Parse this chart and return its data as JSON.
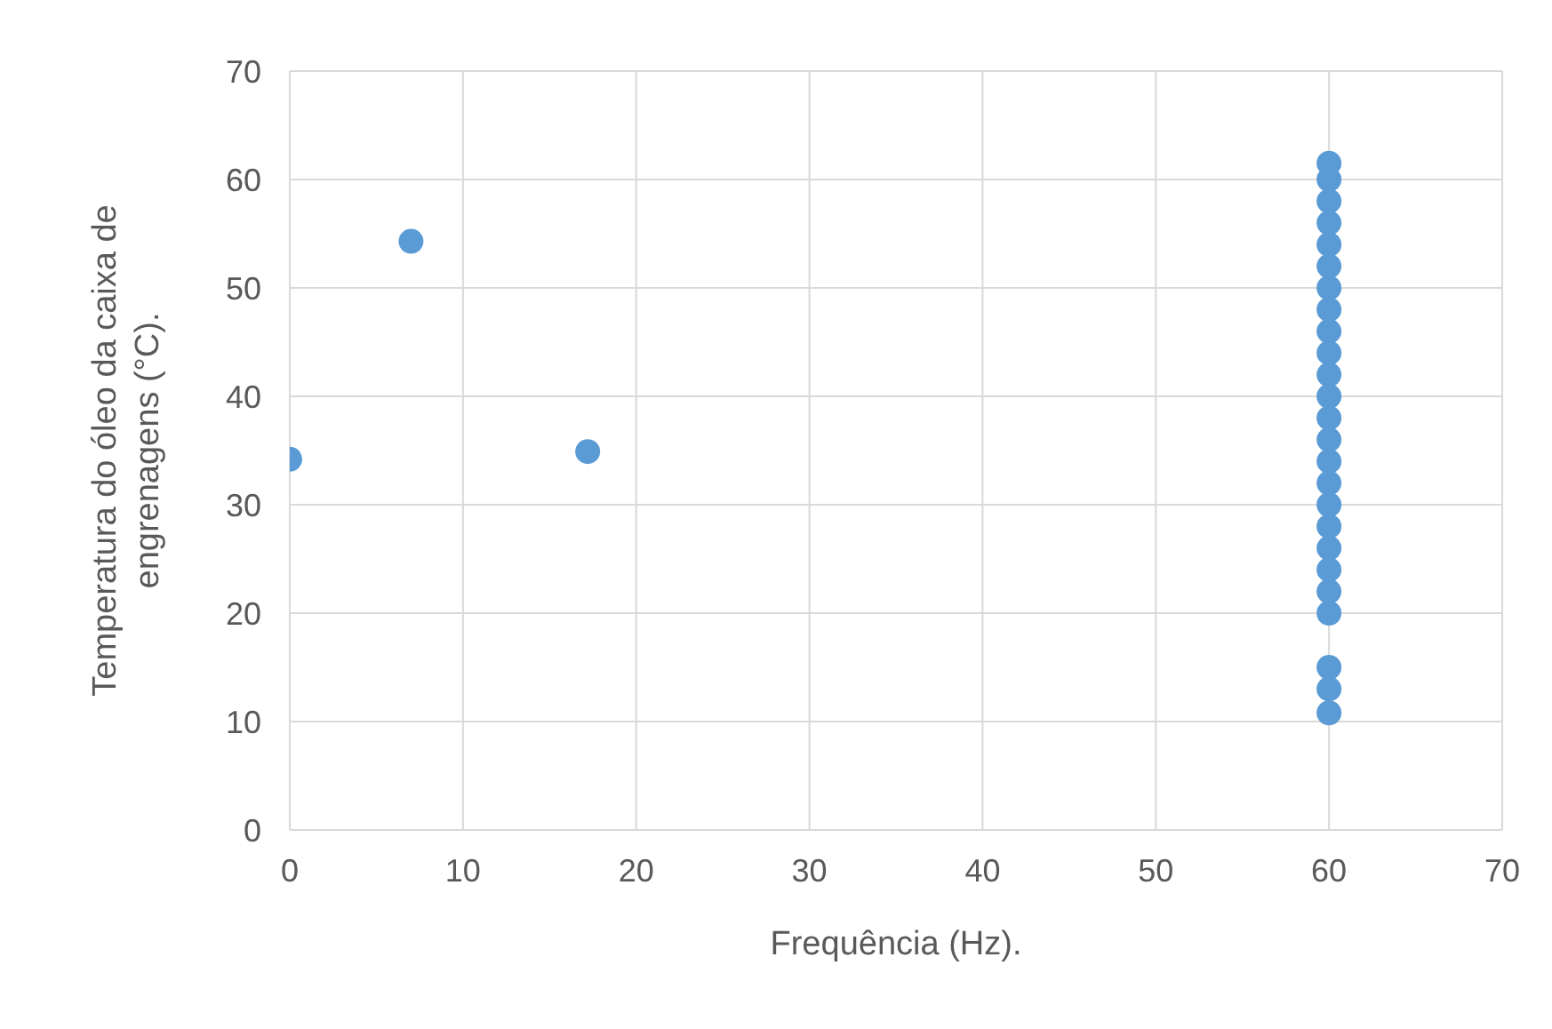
{
  "chart_data": {
    "type": "scatter",
    "xlabel": "Frequência (Hz).",
    "ylabel": "Temperatura do óleo da caixa de engrenagens (°C).",
    "x": [
      0,
      7,
      17.2,
      60,
      60,
      60,
      60,
      60,
      60,
      60,
      60,
      60,
      60,
      60,
      60,
      60,
      60,
      60,
      60,
      60,
      60,
      60,
      60,
      60,
      60,
      60,
      60,
      60
    ],
    "values": [
      34.2,
      54.3,
      34.9,
      10.8,
      13,
      15,
      20,
      22,
      24,
      26,
      28,
      30,
      32,
      34,
      36,
      38,
      40,
      42,
      44,
      46,
      48,
      50,
      52,
      54,
      56,
      58,
      60,
      61.5
    ],
    "color": "#5b9bd5",
    "marker": "circle",
    "xlim": [
      0,
      70
    ],
    "xticks": [
      0,
      10,
      20,
      30,
      40,
      50,
      60,
      70
    ],
    "ylim": [
      0,
      70
    ],
    "yticks": [
      0,
      10,
      20,
      30,
      40,
      50,
      60,
      70
    ],
    "grid": true,
    "legend": false
  }
}
